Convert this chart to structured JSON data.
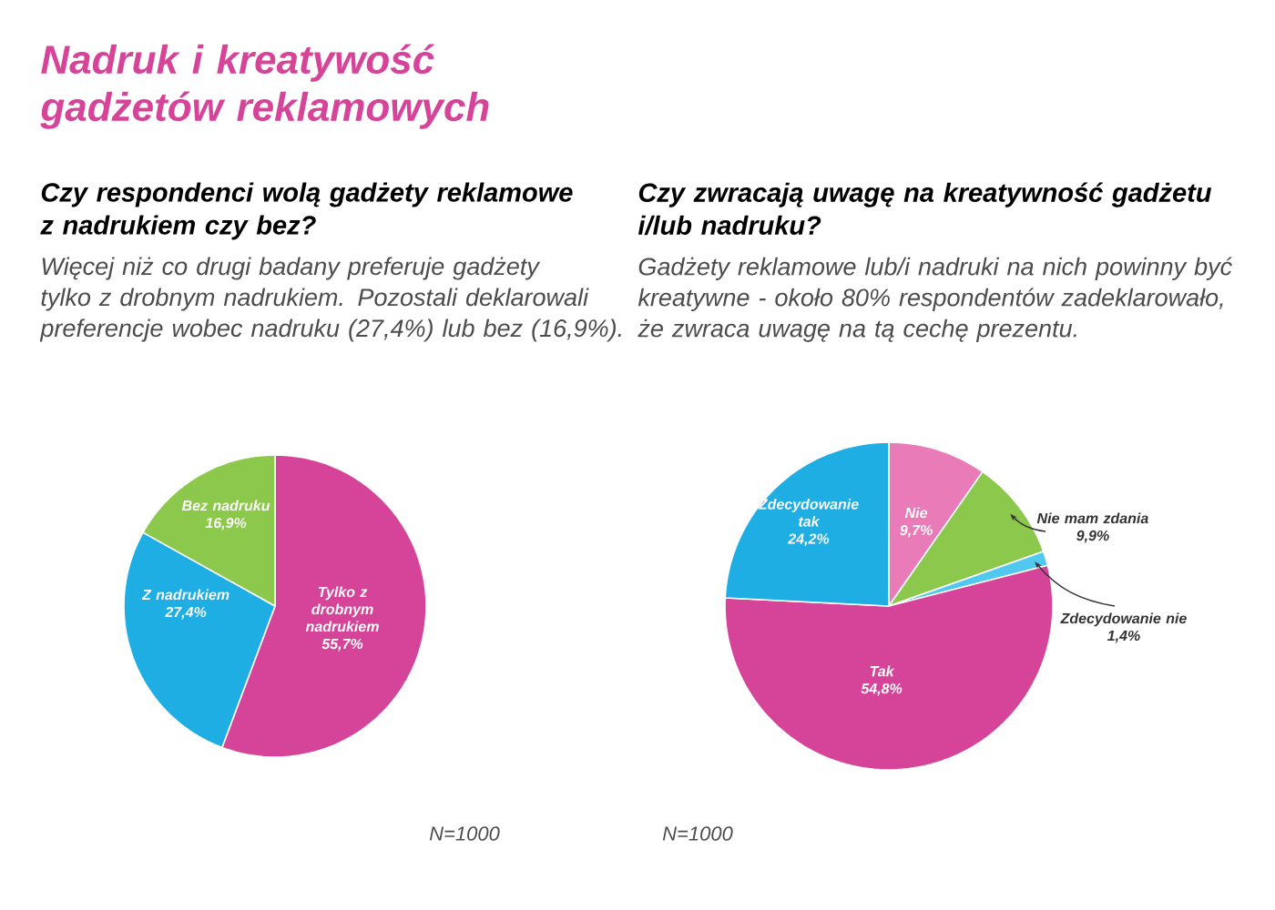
{
  "chart_data": [
    {
      "type": "pie",
      "title": "Czy respondenci wolą gadżety reklamowe z nadrukiem czy bez?",
      "subtitle": "Więcej niż co drugi badany preferuje gadżety tylko z drobnym nadrukiem. Pozostali deklarowali preferencje wobec nadruku (27,4%) lub bez (16,9%).",
      "categories": [
        "Tylko z drobnym nadrukiem",
        "Z nadrukiem",
        "Bez nadruku"
      ],
      "values": [
        55.7,
        27.4,
        16.9
      ],
      "value_labels": [
        "55,7%",
        "27,4%",
        "16,9%"
      ],
      "colors": [
        "#d6449a",
        "#1eaee4",
        "#8cc84b"
      ],
      "annotations": [
        "Nadruk i kreatywość gadżetów reklamowych",
        "N=1000"
      ]
    },
    {
      "type": "pie",
      "title": "Czy zwracają uwagę na kreatywność gadżetu i/lub nadruku?",
      "subtitle": "Gadżety reklamowe lub/i nadruki na nich powinny być kreatywne - około 80% respondentów zadeklarowało, że zwraca uwagę na tą cechę prezentu.",
      "categories": [
        "Nie",
        "Nie mam zdania",
        "Zdecydowanie nie",
        "Tak",
        "Zdecydowanie tak"
      ],
      "values": [
        9.7,
        9.9,
        1.4,
        54.8,
        24.2
      ],
      "value_labels": [
        "9,7%",
        "9,9%",
        "1,4%",
        "54,8%",
        "24,2%"
      ],
      "colors": [
        "#e87bb8",
        "#8cc84b",
        "#50c8f0",
        "#d6449a",
        "#1eaee4"
      ],
      "annotations": [
        "N=1000"
      ]
    }
  ]
}
